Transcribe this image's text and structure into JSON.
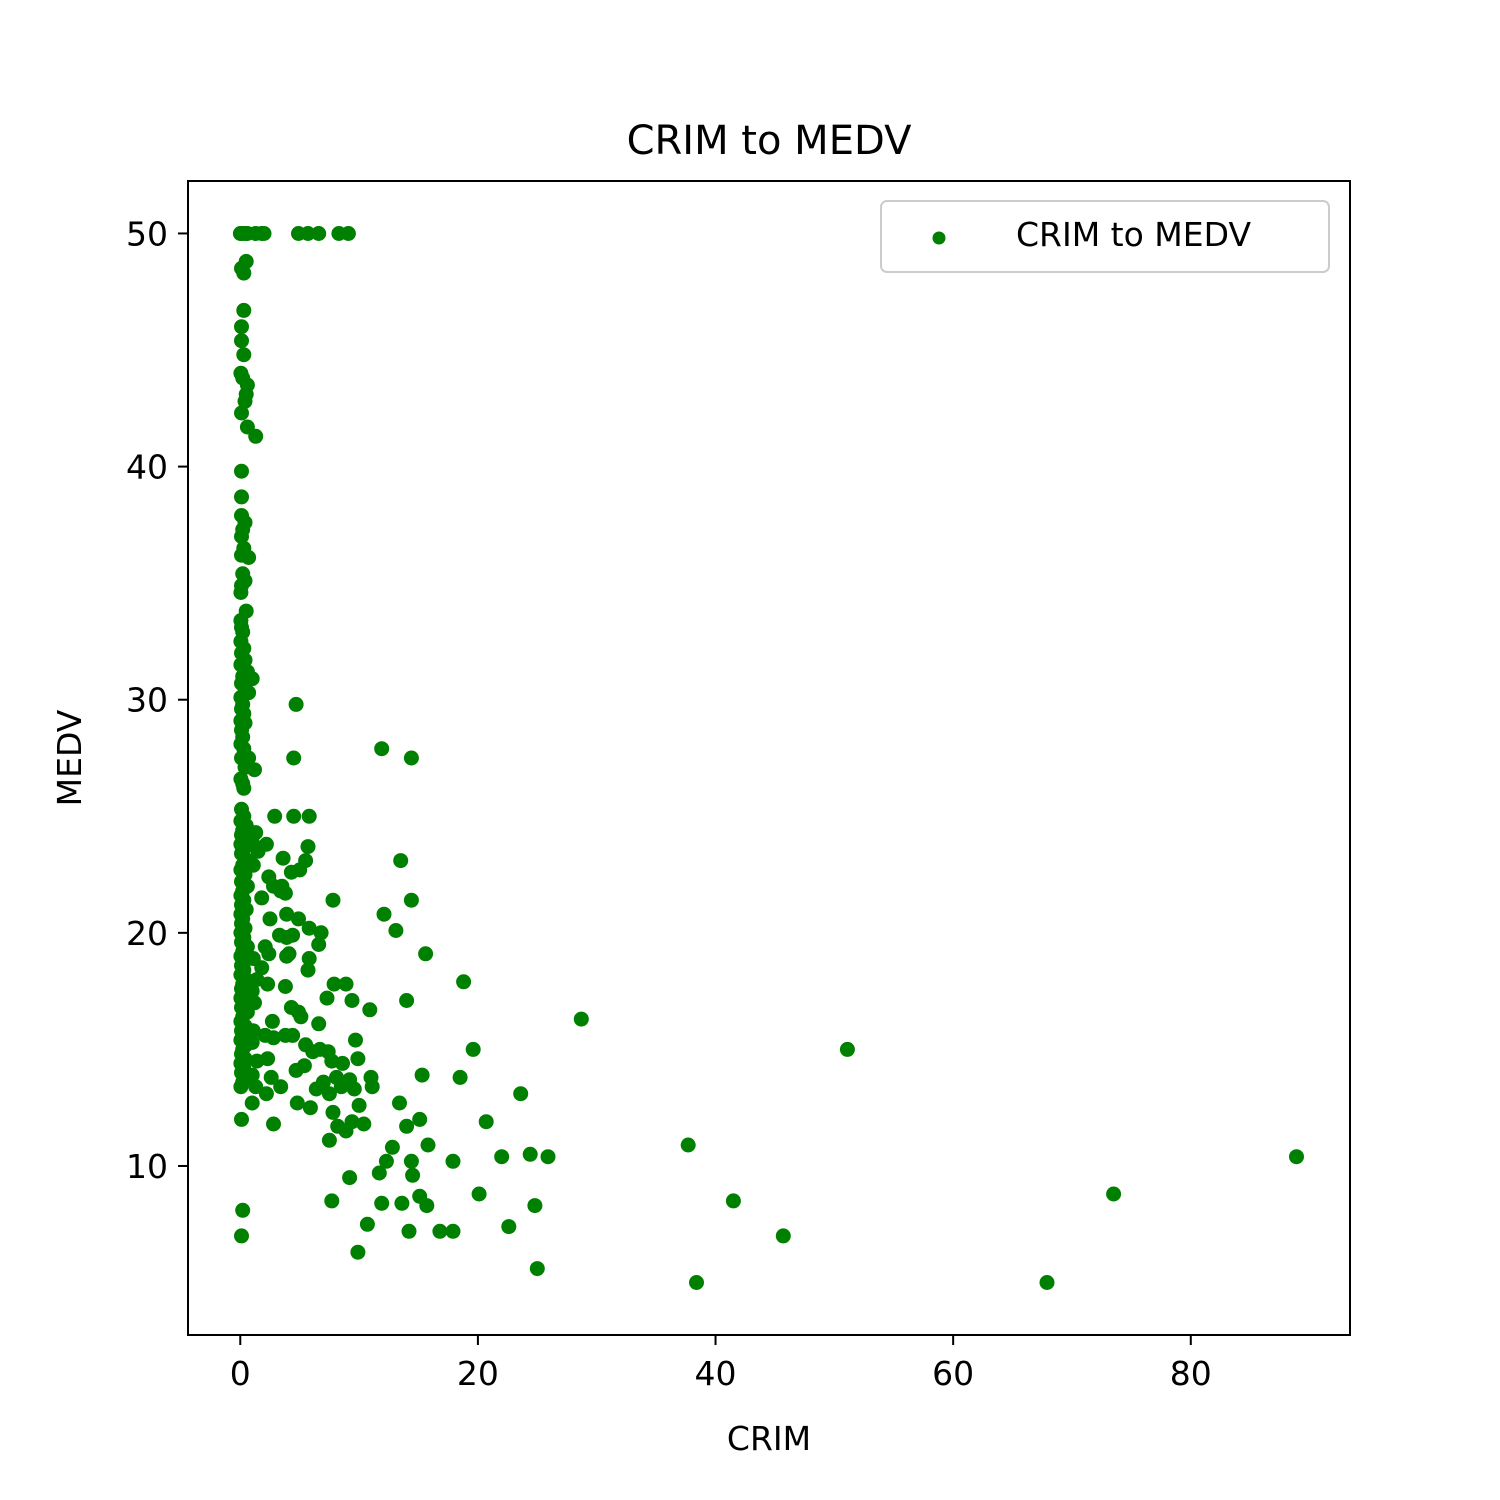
{
  "chart_data": {
    "type": "scatter",
    "title": "CRIM to MEDV",
    "xlabel": "CRIM",
    "ylabel": "MEDV",
    "xlim": [
      -4.4,
      93.4
    ],
    "ylim": [
      2.75,
      52.25
    ],
    "xticks": [
      0,
      20,
      40,
      60,
      80
    ],
    "yticks": [
      10,
      20,
      30,
      40,
      50
    ],
    "grid": false,
    "legend_position": "top-right",
    "color": "#008000",
    "series": [
      {
        "name": "CRIM to MEDV",
        "points": [
          [
            0.01,
            50.0
          ],
          [
            0.05,
            50.0
          ],
          [
            0.3,
            50.0
          ],
          [
            0.5,
            50.0
          ],
          [
            0.6,
            50.0
          ],
          [
            1.3,
            50.0
          ],
          [
            1.8,
            50.0
          ],
          [
            2.0,
            50.0
          ],
          [
            4.9,
            50.0
          ],
          [
            5.7,
            50.0
          ],
          [
            6.6,
            50.0
          ],
          [
            8.3,
            50.0
          ],
          [
            9.1,
            50.0
          ],
          [
            0.1,
            48.5
          ],
          [
            0.3,
            48.3
          ],
          [
            0.5,
            48.8
          ],
          [
            0.3,
            46.7
          ],
          [
            0.1,
            46.0
          ],
          [
            0.1,
            45.4
          ],
          [
            0.3,
            44.8
          ],
          [
            0.05,
            44.0
          ],
          [
            0.2,
            43.8
          ],
          [
            0.6,
            43.5
          ],
          [
            0.5,
            43.1
          ],
          [
            0.4,
            42.8
          ],
          [
            0.1,
            42.3
          ],
          [
            0.6,
            41.7
          ],
          [
            1.3,
            41.3
          ],
          [
            0.1,
            39.8
          ],
          [
            0.1,
            38.7
          ],
          [
            0.1,
            37.9
          ],
          [
            0.4,
            37.6
          ],
          [
            0.2,
            37.3
          ],
          [
            0.1,
            37.0
          ],
          [
            0.3,
            36.5
          ],
          [
            0.1,
            36.2
          ],
          [
            0.7,
            36.1
          ],
          [
            0.2,
            35.4
          ],
          [
            0.4,
            35.1
          ],
          [
            0.1,
            34.9
          ],
          [
            0.05,
            34.6
          ],
          [
            0.5,
            33.8
          ],
          [
            0.05,
            33.4
          ],
          [
            0.1,
            33.1
          ],
          [
            0.2,
            32.9
          ],
          [
            0.05,
            32.5
          ],
          [
            0.3,
            32.2
          ],
          [
            0.1,
            32.0
          ],
          [
            0.4,
            31.7
          ],
          [
            0.05,
            31.5
          ],
          [
            0.6,
            31.2
          ],
          [
            0.2,
            31.0
          ],
          [
            1.0,
            30.9
          ],
          [
            0.1,
            30.7
          ],
          [
            0.4,
            30.5
          ],
          [
            0.7,
            30.3
          ],
          [
            0.05,
            30.1
          ],
          [
            0.2,
            29.8
          ],
          [
            0.1,
            29.6
          ],
          [
            0.3,
            29.4
          ],
          [
            0.05,
            29.1
          ],
          [
            0.4,
            29.0
          ],
          [
            0.1,
            28.7
          ],
          [
            0.2,
            28.4
          ],
          [
            0.05,
            28.1
          ],
          [
            0.3,
            27.9
          ],
          [
            0.1,
            27.5
          ],
          [
            0.7,
            27.5
          ],
          [
            0.4,
            27.1
          ],
          [
            1.2,
            27.0
          ],
          [
            0.05,
            26.6
          ],
          [
            0.2,
            26.4
          ],
          [
            0.3,
            26.2
          ],
          [
            4.7,
            29.8
          ],
          [
            4.5,
            27.5
          ],
          [
            11.9,
            27.9
          ],
          [
            14.4,
            27.5
          ],
          [
            0.1,
            25.3
          ],
          [
            0.3,
            25.0
          ],
          [
            0.05,
            24.8
          ],
          [
            0.5,
            24.6
          ],
          [
            0.2,
            24.4
          ],
          [
            0.1,
            24.2
          ],
          [
            0.6,
            24.0
          ],
          [
            0.05,
            23.8
          ],
          [
            0.3,
            23.6
          ],
          [
            0.1,
            23.4
          ],
          [
            0.7,
            23.1
          ],
          [
            0.2,
            22.9
          ],
          [
            0.05,
            22.7
          ],
          [
            0.4,
            22.5
          ],
          [
            0.1,
            22.2
          ],
          [
            0.6,
            22.0
          ],
          [
            0.2,
            21.8
          ],
          [
            0.05,
            21.6
          ],
          [
            0.3,
            21.4
          ],
          [
            0.1,
            21.2
          ],
          [
            0.5,
            21.0
          ],
          [
            0.05,
            20.8
          ],
          [
            0.2,
            20.6
          ],
          [
            0.1,
            20.4
          ],
          [
            0.4,
            20.2
          ],
          [
            0.05,
            20.0
          ],
          [
            0.3,
            19.8
          ],
          [
            0.1,
            19.6
          ],
          [
            0.6,
            19.4
          ],
          [
            0.2,
            19.2
          ],
          [
            0.05,
            19.0
          ],
          [
            0.4,
            18.8
          ],
          [
            0.1,
            18.6
          ],
          [
            0.3,
            18.4
          ],
          [
            0.05,
            18.2
          ],
          [
            0.5,
            18.0
          ],
          [
            0.2,
            17.8
          ],
          [
            0.1,
            17.6
          ],
          [
            0.4,
            17.4
          ],
          [
            0.05,
            17.2
          ],
          [
            0.3,
            17.0
          ],
          [
            0.1,
            16.8
          ],
          [
            0.6,
            16.6
          ],
          [
            0.2,
            16.4
          ],
          [
            0.05,
            16.2
          ],
          [
            0.4,
            16.0
          ],
          [
            0.1,
            15.8
          ],
          [
            0.3,
            15.6
          ],
          [
            0.05,
            15.4
          ],
          [
            0.5,
            15.2
          ],
          [
            0.2,
            15.0
          ],
          [
            0.1,
            14.8
          ],
          [
            0.4,
            14.6
          ],
          [
            0.05,
            14.4
          ],
          [
            0.3,
            14.2
          ],
          [
            0.1,
            14.0
          ],
          [
            0.6,
            13.8
          ],
          [
            0.2,
            13.6
          ],
          [
            0.05,
            13.4
          ],
          [
            0.1,
            12.0
          ],
          [
            0.2,
            8.1
          ],
          [
            0.1,
            7.0
          ],
          [
            1.3,
            24.3
          ],
          [
            1.0,
            23.9
          ],
          [
            1.5,
            23.5
          ],
          [
            2.2,
            23.8
          ],
          [
            1.1,
            22.9
          ],
          [
            2.4,
            22.4
          ],
          [
            2.9,
            25.0
          ],
          [
            2.8,
            22.0
          ],
          [
            1.8,
            21.5
          ],
          [
            3.6,
            23.2
          ],
          [
            3.5,
            22.0
          ],
          [
            4.3,
            22.6
          ],
          [
            5.0,
            22.7
          ],
          [
            5.5,
            23.1
          ],
          [
            5.7,
            23.7
          ],
          [
            4.5,
            25.0
          ],
          [
            5.8,
            25.0
          ],
          [
            3.4,
            21.8
          ],
          [
            3.8,
            21.7
          ],
          [
            2.5,
            20.6
          ],
          [
            3.9,
            20.8
          ],
          [
            4.9,
            20.6
          ],
          [
            5.8,
            20.2
          ],
          [
            3.3,
            19.9
          ],
          [
            3.9,
            19.8
          ],
          [
            4.4,
            19.9
          ],
          [
            6.8,
            20.0
          ],
          [
            6.6,
            19.5
          ],
          [
            2.1,
            19.4
          ],
          [
            2.4,
            19.1
          ],
          [
            3.9,
            19.0
          ],
          [
            4.1,
            19.1
          ],
          [
            5.8,
            18.9
          ],
          [
            5.7,
            18.4
          ],
          [
            7.8,
            21.4
          ],
          [
            1.1,
            18.9
          ],
          [
            1.8,
            18.5
          ],
          [
            1.4,
            18.0
          ],
          [
            1.0,
            17.5
          ],
          [
            2.3,
            17.8
          ],
          [
            3.8,
            17.7
          ],
          [
            1.2,
            17.0
          ],
          [
            4.3,
            16.8
          ],
          [
            4.9,
            16.6
          ],
          [
            5.1,
            16.4
          ],
          [
            2.7,
            16.2
          ],
          [
            6.6,
            16.1
          ],
          [
            1.1,
            15.8
          ],
          [
            2.1,
            15.6
          ],
          [
            2.8,
            15.5
          ],
          [
            3.8,
            15.6
          ],
          [
            4.4,
            15.6
          ],
          [
            1.0,
            15.3
          ],
          [
            5.5,
            15.2
          ],
          [
            6.1,
            14.9
          ],
          [
            6.7,
            15.0
          ],
          [
            7.4,
            14.9
          ],
          [
            1.4,
            14.5
          ],
          [
            2.3,
            14.6
          ],
          [
            4.7,
            14.1
          ],
          [
            5.4,
            14.3
          ],
          [
            1.0,
            13.9
          ],
          [
            2.6,
            13.8
          ],
          [
            1.3,
            13.4
          ],
          [
            2.2,
            13.1
          ],
          [
            3.4,
            13.4
          ],
          [
            6.4,
            13.3
          ],
          [
            1.0,
            12.7
          ],
          [
            4.8,
            12.7
          ],
          [
            5.9,
            12.5
          ],
          [
            2.8,
            11.8
          ],
          [
            7.9,
            17.8
          ],
          [
            8.9,
            17.8
          ],
          [
            9.4,
            17.1
          ],
          [
            10.9,
            16.7
          ],
          [
            7.3,
            17.2
          ],
          [
            7.7,
            14.5
          ],
          [
            8.6,
            14.4
          ],
          [
            9.2,
            13.7
          ],
          [
            9.9,
            14.6
          ],
          [
            9.7,
            15.4
          ],
          [
            8.1,
            13.8
          ],
          [
            7.0,
            13.6
          ],
          [
            7.5,
            13.1
          ],
          [
            8.5,
            13.4
          ],
          [
            9.6,
            13.3
          ],
          [
            10.0,
            12.6
          ],
          [
            11.1,
            13.4
          ],
          [
            8.2,
            11.7
          ],
          [
            7.8,
            12.3
          ],
          [
            7.5,
            11.1
          ],
          [
            8.9,
            11.5
          ],
          [
            9.4,
            11.9
          ],
          [
            10.4,
            11.8
          ],
          [
            11.0,
            13.8
          ],
          [
            9.2,
            9.5
          ],
          [
            11.7,
            9.7
          ],
          [
            12.3,
            10.2
          ],
          [
            12.8,
            10.8
          ],
          [
            7.7,
            8.5
          ],
          [
            11.9,
            8.4
          ],
          [
            10.7,
            7.5
          ],
          [
            9.9,
            6.3
          ],
          [
            12.1,
            20.8
          ],
          [
            13.1,
            20.1
          ],
          [
            13.5,
            23.1
          ],
          [
            14.4,
            21.4
          ],
          [
            15.6,
            19.1
          ],
          [
            14.0,
            17.1
          ],
          [
            13.4,
            12.7
          ],
          [
            15.1,
            12.0
          ],
          [
            14.0,
            11.7
          ],
          [
            15.8,
            10.9
          ],
          [
            14.4,
            10.2
          ],
          [
            14.5,
            9.6
          ],
          [
            13.6,
            8.4
          ],
          [
            15.1,
            8.7
          ],
          [
            15.7,
            8.3
          ],
          [
            14.2,
            7.2
          ],
          [
            16.8,
            7.2
          ],
          [
            17.9,
            7.2
          ],
          [
            15.3,
            13.9
          ],
          [
            18.8,
            17.9
          ],
          [
            18.5,
            13.8
          ],
          [
            19.6,
            15.0
          ],
          [
            17.9,
            10.2
          ],
          [
            20.7,
            11.9
          ],
          [
            20.1,
            8.8
          ],
          [
            22.0,
            10.4
          ],
          [
            23.6,
            13.1
          ],
          [
            24.4,
            10.5
          ],
          [
            25.9,
            10.4
          ],
          [
            22.6,
            7.4
          ],
          [
            24.8,
            8.3
          ],
          [
            25.0,
            5.6
          ],
          [
            28.7,
            16.3
          ],
          [
            37.7,
            10.9
          ],
          [
            38.4,
            5.0
          ],
          [
            41.5,
            8.5
          ],
          [
            45.7,
            7.0
          ],
          [
            51.1,
            15.0
          ],
          [
            67.9,
            5.0
          ],
          [
            73.5,
            8.8
          ],
          [
            88.9,
            10.4
          ]
        ]
      }
    ]
  }
}
